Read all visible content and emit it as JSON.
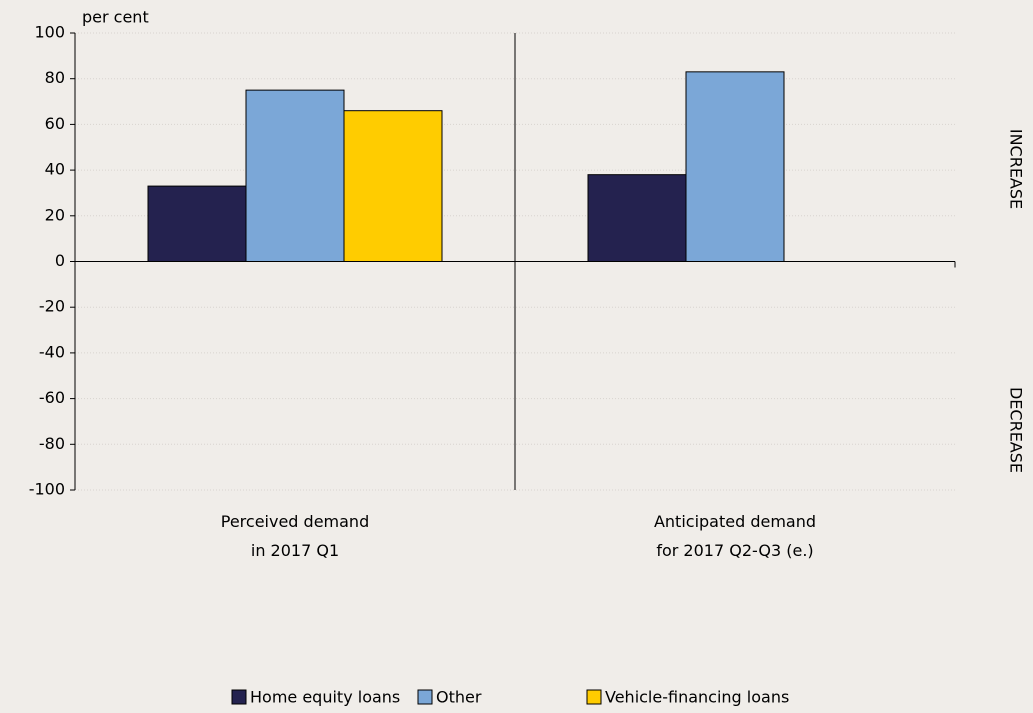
{
  "chart_data": {
    "type": "bar",
    "y_label": "per cent",
    "categories": [
      "Perceived demand\nin 2017 Q1",
      "Anticipated demand\nfor 2017 Q2-Q3 (e.)"
    ],
    "series": [
      {
        "name": "Home equity loans",
        "color": "#24224f",
        "values": [
          33,
          38
        ]
      },
      {
        "name": "Other",
        "color": "#7ba7d7",
        "values": [
          75,
          83
        ]
      },
      {
        "name": "Vehicle-financing loans",
        "color": "#ffcc00",
        "values": [
          66,
          null
        ]
      }
    ],
    "ylim": [
      -100,
      100
    ],
    "yticks": [
      -100,
      -80,
      -60,
      -40,
      -20,
      0,
      20,
      40,
      60,
      80,
      100
    ],
    "grid": true,
    "side_labels": [
      "INCREASE",
      "DECREASE"
    ],
    "legend": "bottom"
  }
}
